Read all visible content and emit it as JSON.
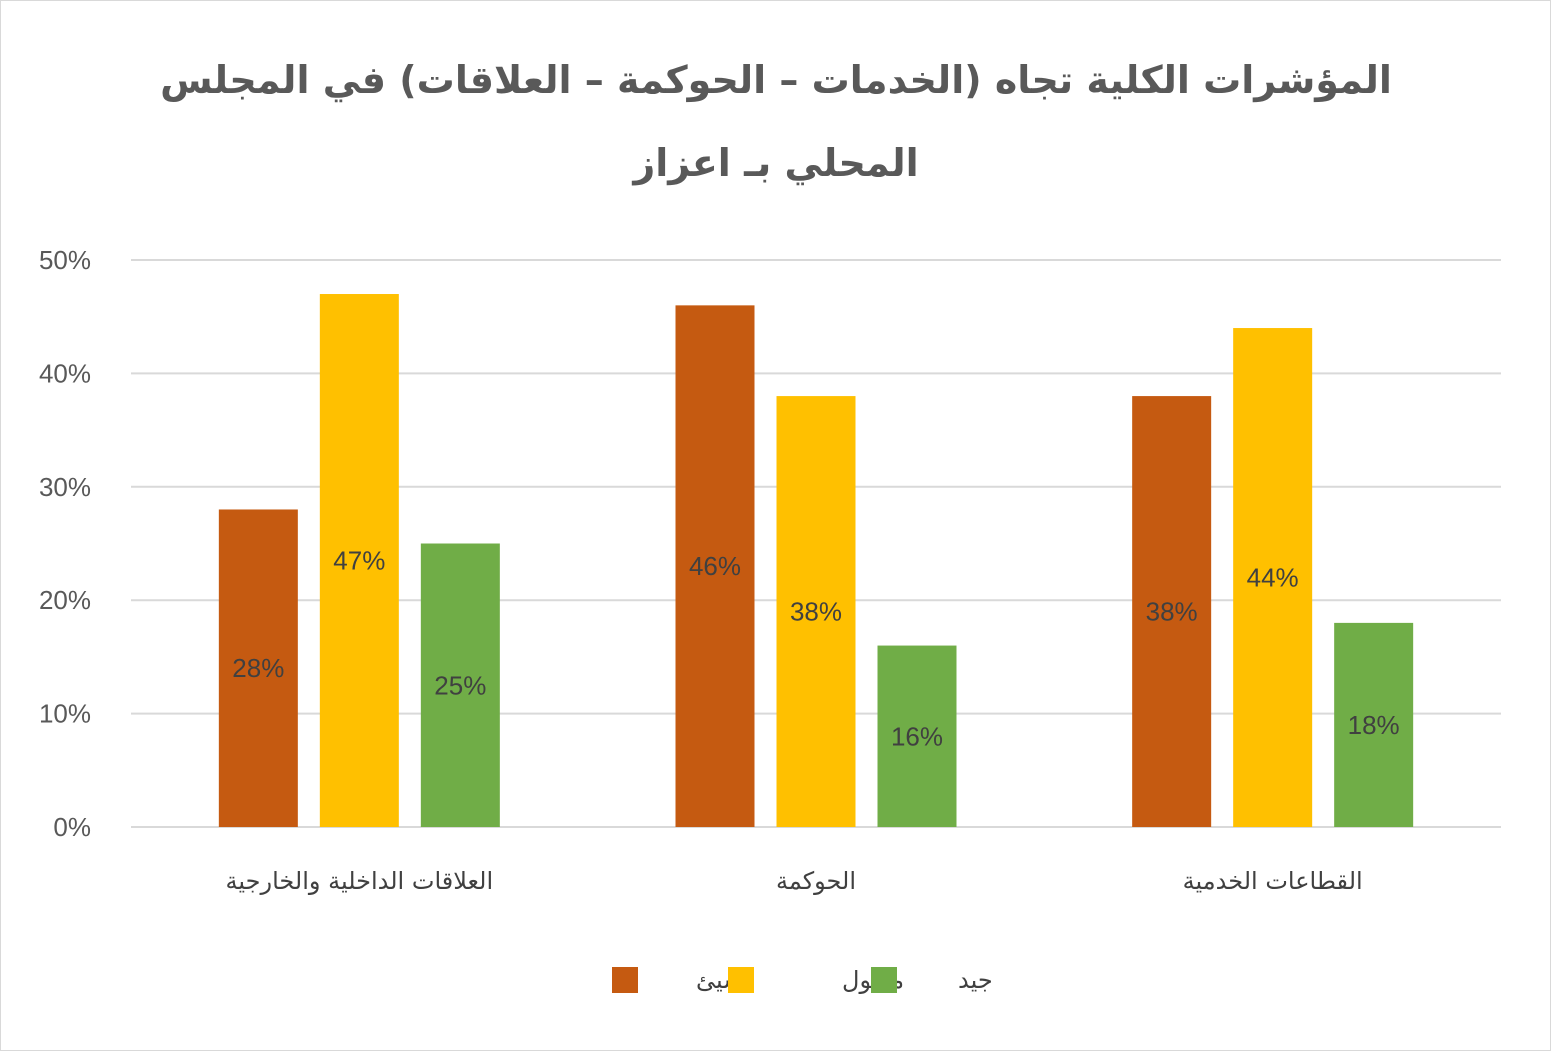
{
  "chart_data": {
    "type": "bar",
    "title": [
      "المؤشرات الكلية تجاه (الخدمات – الحوكمة – العلاقات) في المجلس",
      "المحلي بـ اعزاز"
    ],
    "categories": [
      "العلاقات الداخلية والخارجية",
      "الحوكمة",
      "القطاعات الخدمية"
    ],
    "series": [
      {
        "name": "سيئ",
        "values": [
          0.28,
          0.46,
          0.38
        ],
        "color": "#C55A11",
        "labels": [
          "28%",
          "46%",
          "38%"
        ]
      },
      {
        "name": "مقبول",
        "values": [
          0.47,
          0.38,
          0.44
        ],
        "color": "#FFC000",
        "labels": [
          "47%",
          "38%",
          "44%"
        ]
      },
      {
        "name": "جيد",
        "values": [
          0.25,
          0.16,
          0.18
        ],
        "color": "#70AD47",
        "labels": [
          "25%",
          "16%",
          "18%"
        ]
      }
    ],
    "ylim": [
      0,
      0.5
    ],
    "yticks": [
      "0%",
      "10%",
      "20%",
      "30%",
      "40%",
      "50%"
    ],
    "grid": true,
    "legend_position": "bottom",
    "legend_order": [
      "سيئ",
      "مقبول",
      "جيد"
    ],
    "gridline_color": "#d9d9d9"
  }
}
